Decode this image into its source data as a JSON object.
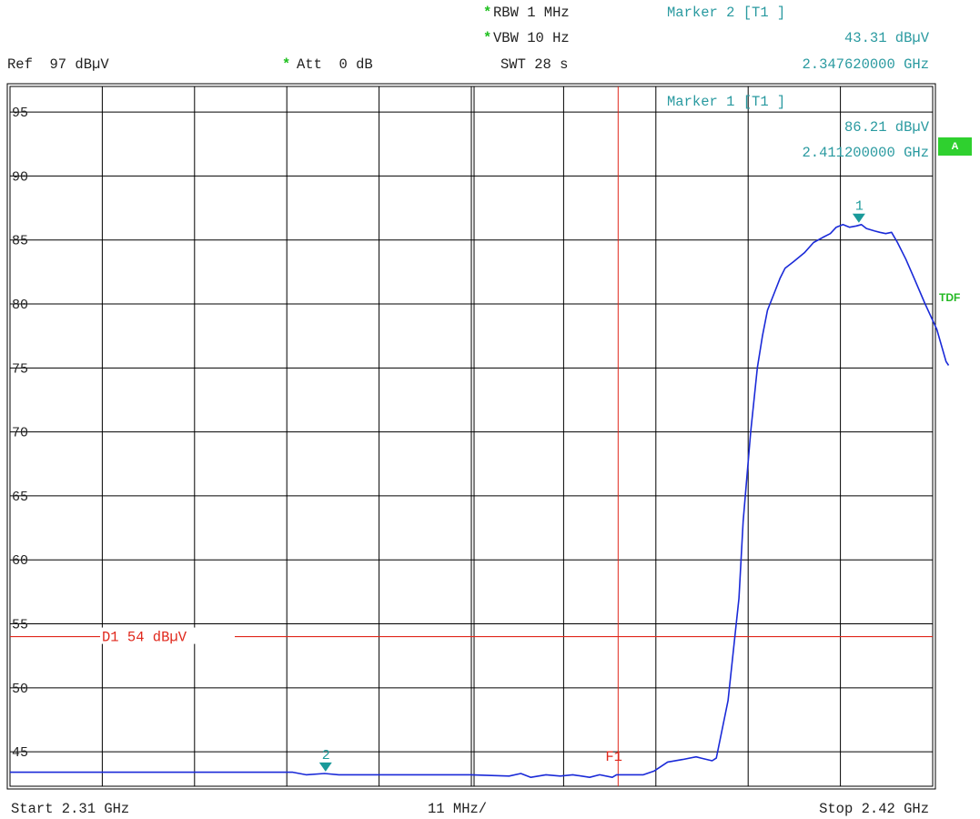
{
  "header": {
    "rbw_star": "*",
    "rbw": "RBW 1 MHz",
    "vbw_star": "*",
    "vbw": "VBW 10 Hz",
    "swt": "SWT 28 s",
    "ref": "Ref  97 dBµV",
    "att_star": "*",
    "att": "Att  0 dB",
    "marker2_title": "Marker 2 [T1 ]",
    "marker2_level": "43.31 dBµV",
    "marker2_freq": "2.347620000 GHz"
  },
  "marker1_box": {
    "title": "Marker 1 [T1 ]",
    "level": "86.21 dBµV",
    "freq": "2.411200000 GHz"
  },
  "side": {
    "a_badge": "A",
    "tdf": "TDF"
  },
  "footer": {
    "start": "Start 2.31 GHz",
    "span": "11 MHz/",
    "stop": "Stop 2.42 GHz"
  },
  "colors": {
    "trace": "#1a2ad8",
    "marker": "#1a9a9a",
    "limit": "#e0281c",
    "grid": "#000000"
  },
  "chart_data": {
    "type": "line",
    "x_unit": "GHz",
    "y_unit": "dBµV",
    "xlim": [
      2.31,
      2.42
    ],
    "ylim": [
      42,
      97
    ],
    "y_ticks": [
      95,
      90,
      85,
      80,
      75,
      70,
      65,
      60,
      55,
      50,
      45
    ],
    "x_gridlines": [
      2.31,
      2.321,
      2.332,
      2.343,
      2.354,
      2.365,
      2.376,
      2.387,
      2.398,
      2.409,
      2.42
    ],
    "grid": true,
    "display_line": {
      "label": "D1  54 dBµV",
      "value": 54
    },
    "frequency_line": {
      "label": "F1",
      "value": 2.3825
    },
    "markers": [
      {
        "label": "1",
        "x": 2.4112,
        "y": 86.21
      },
      {
        "label": "2",
        "x": 2.34762,
        "y": 43.31
      }
    ],
    "series": [
      {
        "x": [
          2.31,
          2.3135,
          2.3258,
          2.3437,
          2.3453,
          2.3475,
          2.3492,
          2.3529,
          2.3649,
          2.3695,
          2.3709,
          2.3721,
          2.3739,
          2.3756,
          2.3771,
          2.3791,
          2.3803,
          2.3818,
          2.3823,
          2.3841,
          2.3855,
          2.3868,
          2.3884,
          2.3902,
          2.3918,
          2.3924,
          2.3937,
          2.3942,
          2.3956,
          2.3969,
          2.3974,
          2.3983,
          2.3991,
          2.3997,
          2.4003,
          2.4012,
          2.4018,
          2.4024,
          2.4034,
          2.4047,
          2.4058,
          2.4069,
          2.4078,
          2.4085,
          2.4093,
          2.4101,
          2.4109,
          2.4115,
          2.4121,
          2.4131,
          2.4137,
          2.4144,
          2.4151,
          2.4158,
          2.4168,
          2.4178,
          2.4191,
          2.4205,
          2.4216,
          2.4219
        ],
        "y": [
          43.4,
          43.4,
          43.4,
          43.4,
          43.2,
          43.3,
          43.2,
          43.2,
          43.2,
          43.1,
          43.3,
          43.0,
          43.2,
          43.1,
          43.2,
          43.0,
          43.2,
          43.0,
          43.2,
          43.2,
          43.2,
          43.5,
          44.2,
          44.4,
          44.6,
          44.5,
          44.3,
          44.5,
          49.0,
          57.0,
          63.0,
          70.0,
          75.0,
          77.5,
          79.5,
          81.0,
          82.0,
          82.8,
          83.3,
          84.0,
          84.8,
          85.2,
          85.5,
          86.0,
          86.2,
          86.0,
          86.1,
          86.2,
          85.9,
          85.7,
          85.6,
          85.5,
          85.6,
          84.8,
          83.5,
          82.0,
          80.0,
          78.0,
          75.5,
          75.2
        ]
      }
    ]
  }
}
